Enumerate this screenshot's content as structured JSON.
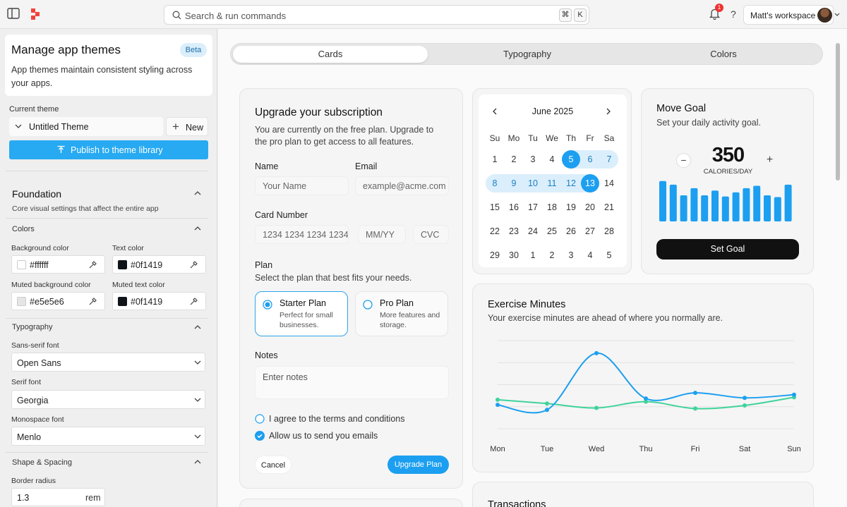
{
  "topbar": {
    "search_placeholder": "Search & run commands",
    "shortcut_keys": [
      "⌘",
      "K"
    ],
    "notification_count": "1",
    "help_label": "?",
    "workspace_label": "Matt's workspace"
  },
  "sidebar": {
    "title": "Manage app themes",
    "badge": "Beta",
    "description": "App themes maintain consistent styling across your apps.",
    "current_theme_label": "Current theme",
    "current_theme": "Untitled Theme",
    "new_label": "New",
    "publish_label": "Publish to theme library",
    "foundation": {
      "title": "Foundation",
      "description": "Core visual settings that affect the entire app",
      "colors_label": "Colors",
      "fields": [
        {
          "label": "Background color",
          "value": "#ffffff",
          "swatch": "#ffffff"
        },
        {
          "label": "Text color",
          "value": "#0f1419",
          "swatch": "#0f1419"
        },
        {
          "label": "Muted background color",
          "value": "#e5e5e6",
          "swatch": "#e5e5e6"
        },
        {
          "label": "Muted text color",
          "value": "#0f1419",
          "swatch": "#0f1419"
        }
      ],
      "typography_label": "Typography",
      "fonts": [
        {
          "label": "Sans-serif font",
          "value": "Open Sans"
        },
        {
          "label": "Serif font",
          "value": "Georgia"
        },
        {
          "label": "Monospace font",
          "value": "Menlo"
        }
      ],
      "shape_label": "Shape & Spacing",
      "border_radius_label": "Border radius",
      "border_radius_value": "1.3",
      "border_radius_unit": "rem"
    }
  },
  "tabs": [
    {
      "label": "Cards",
      "active": true
    },
    {
      "label": "Typography",
      "active": false
    },
    {
      "label": "Colors",
      "active": false
    }
  ],
  "subscription": {
    "title": "Upgrade your subscription",
    "description": "You are currently on the free plan. Upgrade to the pro plan to get access to all features.",
    "name_label": "Name",
    "name_placeholder": "Your Name",
    "email_label": "Email",
    "email_placeholder": "example@acme.com",
    "card_label": "Card Number",
    "card_placeholder": "1234 1234 1234 1234",
    "expiry_placeholder": "MM/YY",
    "cvc_placeholder": "CVC",
    "plan_label": "Plan",
    "plan_description": "Select the plan that best fits your needs.",
    "plans": [
      {
        "title": "Starter Plan",
        "desc": "Perfect for small businesses.",
        "selected": true
      },
      {
        "title": "Pro Plan",
        "desc": "More features and storage.",
        "selected": false
      }
    ],
    "notes_label": "Notes",
    "notes_placeholder": "Enter notes",
    "terms_label": "I agree to the terms and conditions",
    "terms_checked": false,
    "emails_label": "Allow us to send you emails",
    "emails_checked": true,
    "cancel_label": "Cancel",
    "upgrade_label": "Upgrade Plan"
  },
  "calendar": {
    "month": "June 2025",
    "weekdays": [
      "Su",
      "Mo",
      "Tu",
      "We",
      "Th",
      "Fr",
      "Sa"
    ],
    "weeks": [
      [
        "1",
        "2",
        "3",
        "4",
        "5",
        "6",
        "7"
      ],
      [
        "8",
        "9",
        "10",
        "11",
        "12",
        "13",
        "14"
      ],
      [
        "15",
        "16",
        "17",
        "18",
        "19",
        "20",
        "21"
      ],
      [
        "22",
        "23",
        "24",
        "25",
        "26",
        "27",
        "28"
      ],
      [
        "29",
        "30",
        "1",
        "2",
        "3",
        "4",
        "5"
      ]
    ],
    "range_start": "5",
    "range_end": "13",
    "accent": "#1c9ff0"
  },
  "goal": {
    "title": "Move Goal",
    "description": "Set your daily activity goal.",
    "value": "350",
    "unit": "CALORIES/DAY",
    "button": "Set Goal",
    "bar_values": [
      0.68,
      0.62,
      0.44,
      0.56,
      0.44,
      0.52,
      0.42,
      0.49,
      0.56,
      0.6,
      0.44,
      0.41,
      0.62
    ],
    "bar_color": "#1c9ff0"
  },
  "exercise": {
    "title": "Exercise Minutes",
    "description": "Your exercise minutes are ahead of where you normally are.",
    "chart_data": {
      "type": "line",
      "categories": [
        "Mon",
        "Tue",
        "Wed",
        "Thu",
        "Fri",
        "Sat",
        "Sun"
      ],
      "series": [
        {
          "values": [
            38,
            30,
            120,
            48,
            57,
            49,
            54
          ],
          "color": "#1c9ff0"
        },
        {
          "values": [
            46,
            40,
            33,
            43,
            32,
            37,
            50
          ],
          "color": "#3fd39b"
        }
      ],
      "ylim": [
        0,
        140
      ],
      "grid": true
    }
  },
  "transactions": {
    "title": "Transactions"
  }
}
